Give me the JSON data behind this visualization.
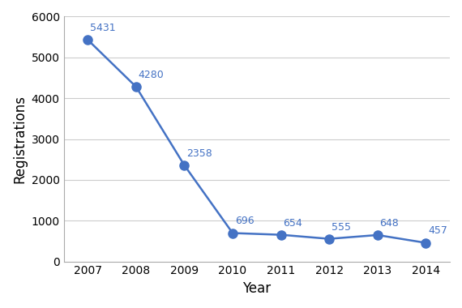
{
  "years": [
    2007,
    2008,
    2009,
    2010,
    2011,
    2012,
    2013,
    2014
  ],
  "values": [
    5431,
    4280,
    2358,
    696,
    654,
    555,
    648,
    457
  ],
  "line_color": "#4472C4",
  "marker_color": "#4472C4",
  "marker_style": "o",
  "marker_size": 8,
  "line_width": 1.8,
  "xlabel": "Year",
  "ylabel": "Registrations",
  "xlim": [
    2006.5,
    2014.5
  ],
  "ylim": [
    0,
    6000
  ],
  "yticks": [
    0,
    1000,
    2000,
    3000,
    4000,
    5000,
    6000
  ],
  "grid_color": "#cccccc",
  "background_color": "#ffffff",
  "annotation_color": "#4472C4",
  "annotation_fontsize": 9,
  "label_fontsize": 12,
  "tick_fontsize": 10,
  "border_color": "#aaaaaa"
}
